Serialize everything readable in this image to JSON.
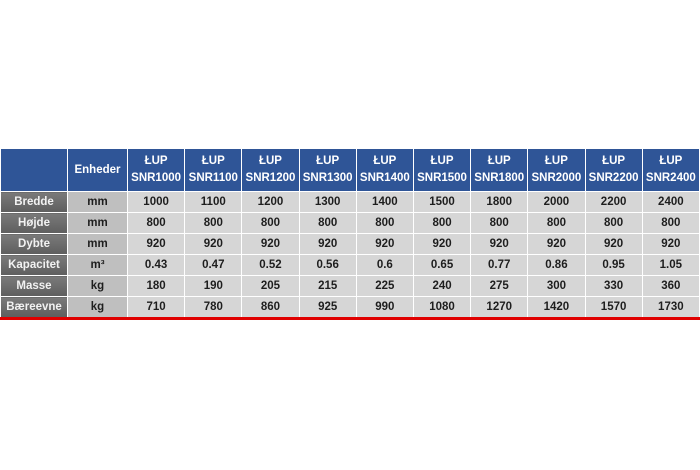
{
  "header": {
    "corner": "",
    "units": "Enheder",
    "models": [
      [
        "ŁUP",
        "SNR1000"
      ],
      [
        "ŁUP",
        "SNR1100"
      ],
      [
        "ŁUP",
        "SNR1200"
      ],
      [
        "ŁUP",
        "SNR1300"
      ],
      [
        "ŁUP",
        "SNR1400"
      ],
      [
        "ŁUP",
        "SNR1500"
      ],
      [
        "ŁUP",
        "SNR1800"
      ],
      [
        "ŁUP",
        "SNR2000"
      ],
      [
        "ŁUP",
        "SNR2200"
      ],
      [
        "ŁUP",
        "SNR2400"
      ]
    ]
  },
  "rows": [
    {
      "label": "Bredde",
      "unit": "mm",
      "values": [
        "1000",
        "1100",
        "1200",
        "1300",
        "1400",
        "1500",
        "1800",
        "2000",
        "2200",
        "2400"
      ]
    },
    {
      "label": "Højde",
      "unit": "mm",
      "values": [
        "800",
        "800",
        "800",
        "800",
        "800",
        "800",
        "800",
        "800",
        "800",
        "800"
      ]
    },
    {
      "label": "Dybte",
      "unit": "mm",
      "values": [
        "920",
        "920",
        "920",
        "920",
        "920",
        "920",
        "920",
        "920",
        "920",
        "920"
      ]
    },
    {
      "label": "Kapacitet",
      "unit": "m³",
      "values": [
        "0.43",
        "0.47",
        "0.52",
        "0.56",
        "0.6",
        "0.65",
        "0.77",
        "0.86",
        "0.95",
        "1.05"
      ]
    },
    {
      "label": "Masse",
      "unit": "kg",
      "values": [
        "180",
        "190",
        "205",
        "215",
        "225",
        "240",
        "275",
        "300",
        "330",
        "360"
      ]
    },
    {
      "label": "Bæreevne",
      "unit": "kg",
      "values": [
        "710",
        "780",
        "860",
        "925",
        "990",
        "1080",
        "1270",
        "1420",
        "1570",
        "1730"
      ]
    }
  ],
  "colors": {
    "header": "#2f5597",
    "label_col": "#6b6b6b",
    "unit_col": "#bfbfbf",
    "cell": "#d6d6d6",
    "bottom_line": "#e00000"
  }
}
